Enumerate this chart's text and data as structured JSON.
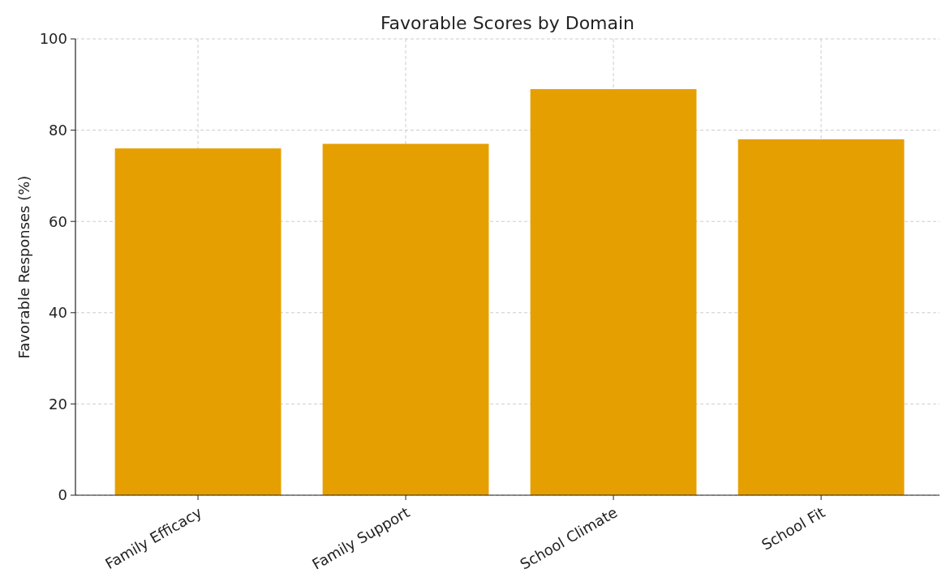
{
  "chart_data": {
    "type": "bar",
    "title": "Favorable Scores by Domain",
    "categories": [
      "Family Efficacy",
      "Family Support",
      "School Climate",
      "School Fit"
    ],
    "values": [
      76,
      77,
      89,
      78
    ],
    "color": "#e69f00",
    "ylabel": "Favorable Responses (%)",
    "ylim": [
      0,
      100
    ],
    "yticks": [
      0,
      20,
      40,
      60,
      80,
      100
    ],
    "grid": true
  }
}
